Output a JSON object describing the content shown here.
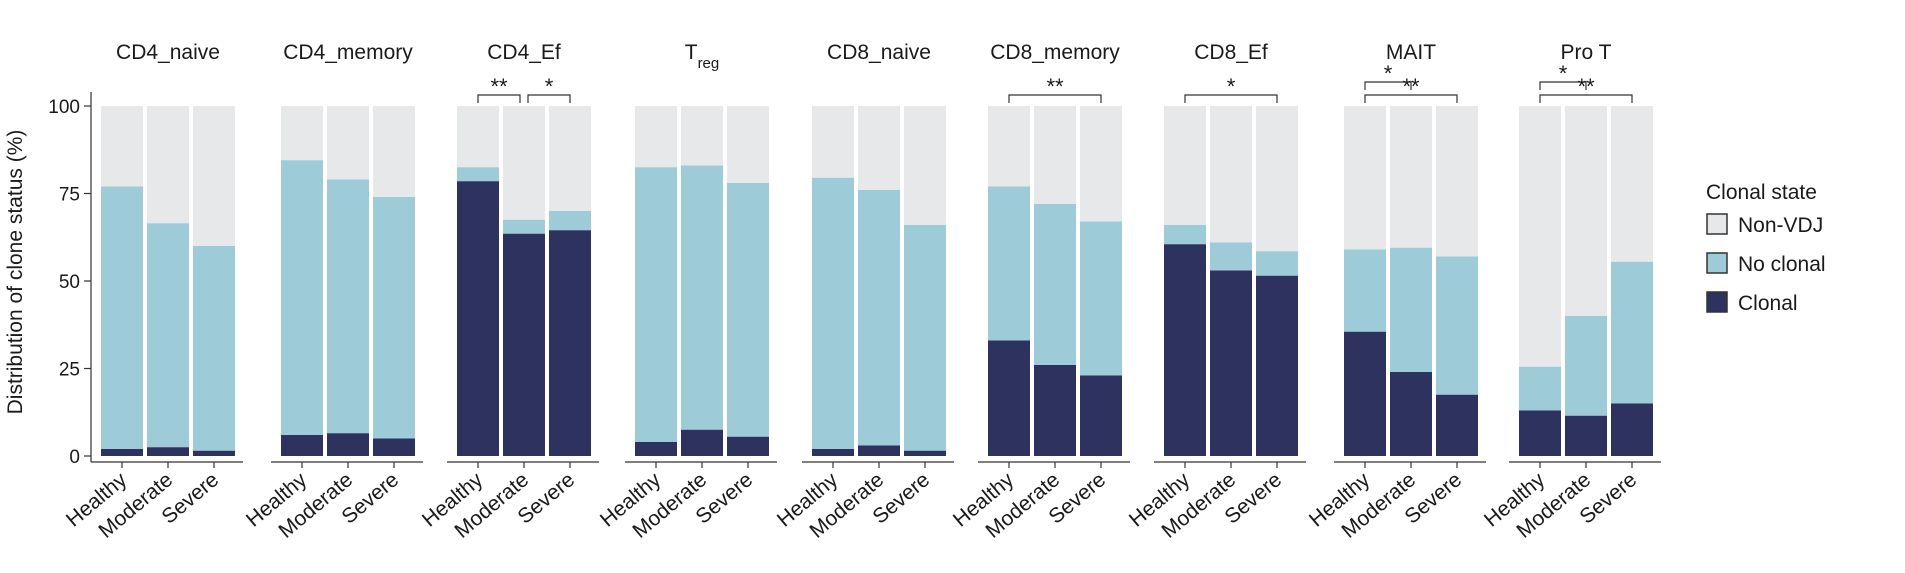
{
  "chart_data": {
    "type": "bar",
    "stacked": true,
    "ylabel": "Distribution of clone status (%)",
    "ylim": [
      0,
      100
    ],
    "yticks": [
      0,
      25,
      50,
      75,
      100
    ],
    "categories": [
      "Healthy",
      "Moderate",
      "Severe"
    ],
    "legend": {
      "title": "Clonal state",
      "position": "right",
      "entries": [
        "Non-VDJ",
        "No clonal",
        "Clonal"
      ]
    },
    "colors": {
      "Non-VDJ": "#e6e8ea",
      "No clonal": "#9ecbd8",
      "Clonal": "#2d325e"
    },
    "panels": [
      {
        "title": "CD4_naive",
        "clonal": [
          2,
          2.5,
          1.5
        ],
        "no_clonal": [
          75,
          64,
          58.5
        ],
        "comparisons": []
      },
      {
        "title": "CD4_memory",
        "clonal": [
          6,
          6.5,
          5
        ],
        "no_clonal": [
          78.5,
          72.5,
          69
        ],
        "comparisons": []
      },
      {
        "title": "CD4_Ef",
        "clonal": [
          78.5,
          63.5,
          64.5
        ],
        "no_clonal": [
          4,
          4,
          5.5
        ],
        "comparisons": [
          {
            "from": 0,
            "to": 1,
            "label": "**"
          },
          {
            "from": 1,
            "to": 2,
            "label": "*"
          }
        ]
      },
      {
        "title": "T",
        "title_sub": "reg",
        "clonal": [
          4,
          7.5,
          5.5
        ],
        "no_clonal": [
          78.5,
          75.5,
          72.5
        ],
        "comparisons": []
      },
      {
        "title": "CD8_naive",
        "clonal": [
          2,
          3,
          1.5
        ],
        "no_clonal": [
          77.5,
          73,
          64.5
        ],
        "comparisons": []
      },
      {
        "title": "CD8_memory",
        "clonal": [
          33,
          26,
          23
        ],
        "no_clonal": [
          44,
          46,
          44
        ],
        "comparisons": [
          {
            "from": 0,
            "to": 2,
            "label": "**"
          }
        ]
      },
      {
        "title": "CD8_Ef",
        "clonal": [
          60.5,
          53,
          51.5
        ],
        "no_clonal": [
          5.5,
          8,
          7
        ],
        "comparisons": [
          {
            "from": 0,
            "to": 2,
            "label": "*"
          }
        ]
      },
      {
        "title": "MAIT",
        "clonal": [
          35.5,
          24,
          17.5
        ],
        "no_clonal": [
          23.5,
          35.5,
          39.5
        ],
        "comparisons": [
          {
            "from": 0,
            "to": 1,
            "label": "*"
          },
          {
            "from": 0,
            "to": 2,
            "label": "**"
          }
        ]
      },
      {
        "title": "Pro T",
        "clonal": [
          13,
          11.5,
          15
        ],
        "no_clonal": [
          12.5,
          28.5,
          40.5
        ],
        "comparisons": [
          {
            "from": 0,
            "to": 1,
            "label": "*"
          },
          {
            "from": 0,
            "to": 2,
            "label": "**"
          }
        ]
      }
    ]
  }
}
